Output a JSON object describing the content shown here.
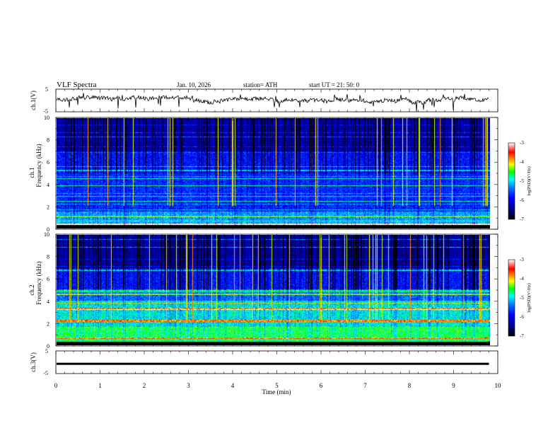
{
  "header": {
    "title": "VLF  Spectra",
    "date": "Jan. 10, 2026",
    "station": "station= ATH",
    "start_time": "start  UT  =   21: 50: 0"
  },
  "chart_data": [
    {
      "type": "line",
      "name": "ch1-waveform",
      "ylabel": "ch.1(V)",
      "yticks": [
        "5",
        "-5"
      ],
      "ylim": [
        -5,
        5
      ],
      "xlim": [
        0,
        10
      ],
      "description_level": 0.2
    },
    {
      "type": "heatmap",
      "name": "ch1-spectrogram",
      "ylabel": "Frequency (kHz)",
      "channel_label": "ch.1",
      "yticks": [
        "0",
        "2",
        "4",
        "6",
        "8",
        "10"
      ],
      "ylim": [
        0,
        10
      ],
      "xlim": [
        0,
        9.8
      ],
      "colorbar": {
        "label": "log(PSD)(V²/Hz)",
        "ticks": [
          "-3",
          "-4",
          "-5",
          "-6",
          "-7"
        ],
        "range": [
          -7,
          -3
        ]
      }
    },
    {
      "type": "heatmap",
      "name": "ch2-spectrogram",
      "ylabel": "Frequency (kHz)",
      "channel_label": "ch.2",
      "yticks": [
        "0",
        "2",
        "4",
        "6",
        "8",
        "10"
      ],
      "ylim": [
        0,
        10
      ],
      "xlim": [
        0,
        9.8
      ],
      "colorbar": {
        "label": "log(PSD)(V²/Hz)",
        "ticks": [
          "-3",
          "-4",
          "-5",
          "-6",
          "-7"
        ],
        "range": [
          -7,
          -3
        ]
      }
    },
    {
      "type": "line",
      "name": "ch3-waveform",
      "ylabel": "ch.3(V)",
      "yticks": [
        "5",
        "-5"
      ],
      "ylim": [
        -5,
        5
      ],
      "xlim": [
        0,
        10
      ],
      "level": -0.7
    }
  ],
  "xaxis": {
    "label": "Time  (min)",
    "ticks": [
      "0",
      "1",
      "2",
      "3",
      "4",
      "5",
      "6",
      "7",
      "8",
      "9",
      "10"
    ]
  },
  "colors": {
    "colormap": [
      "#000000",
      "#000080",
      "#0000ff",
      "#0080ff",
      "#00ffff",
      "#00ff00",
      "#ffff00",
      "#ff8000",
      "#ff0000",
      "#ffffff"
    ]
  }
}
